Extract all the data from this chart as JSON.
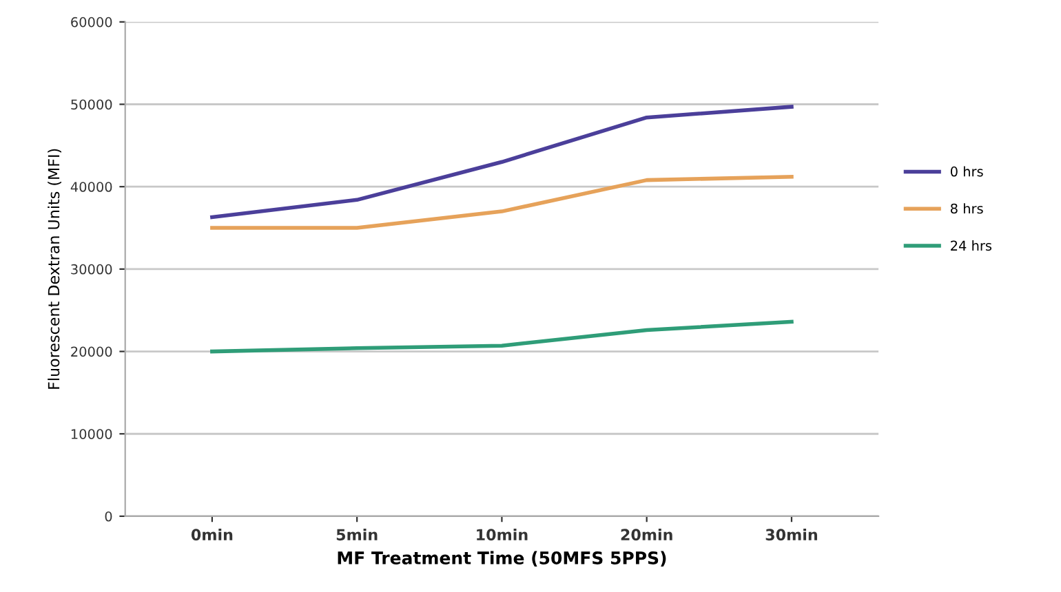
{
  "chart_data": {
    "type": "line",
    "xlabel": "MF Treatment Time (50MFS 5PPS)",
    "ylabel": "Fluorescent Dextran Units (MFI)",
    "categories": [
      "0min",
      "5min",
      "10min",
      "20min",
      "30min"
    ],
    "series": [
      {
        "name": "0 hrs",
        "color": "#4b3f9a",
        "values": [
          36300,
          38400,
          43000,
          48400,
          49700
        ]
      },
      {
        "name": "8 hrs",
        "color": "#e6a25a",
        "values": [
          35000,
          35000,
          37000,
          40800,
          41200
        ]
      },
      {
        "name": "24 hrs",
        "color": "#2f9d78",
        "values": [
          20000,
          20400,
          20700,
          22600,
          23600
        ]
      }
    ],
    "ylim": [
      0,
      60000
    ],
    "yticks": [
      0,
      10000,
      20000,
      30000,
      40000,
      50000,
      60000
    ],
    "grid": "y",
    "legend": "right",
    "marker": "none",
    "line_style": "solid"
  }
}
